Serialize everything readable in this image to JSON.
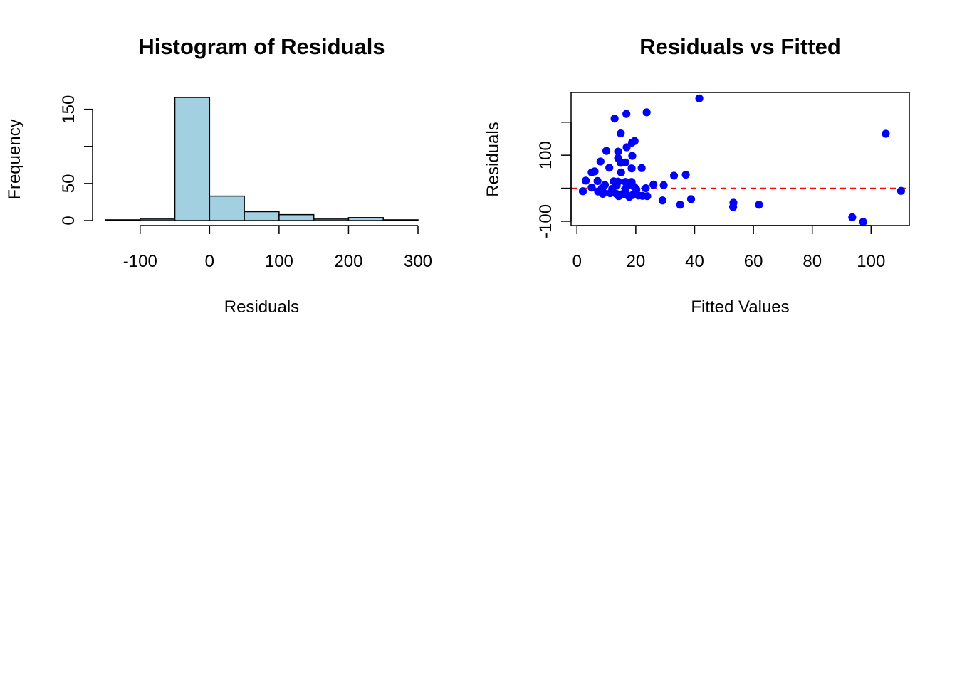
{
  "chart_data": [
    {
      "type": "bar",
      "title": "Histogram of Residuals",
      "xlabel": "Residuals",
      "ylabel": "Frequency",
      "bins": [
        {
          "from": -150,
          "to": -100,
          "count": 1
        },
        {
          "from": -100,
          "to": -50,
          "count": 2
        },
        {
          "from": -50,
          "to": 0,
          "count": 166
        },
        {
          "from": 0,
          "to": 50,
          "count": 33
        },
        {
          "from": 50,
          "to": 100,
          "count": 12
        },
        {
          "from": 100,
          "to": 150,
          "count": 8
        },
        {
          "from": 150,
          "to": 200,
          "count": 2
        },
        {
          "from": 200,
          "to": 250,
          "count": 4
        },
        {
          "from": 250,
          "to": 300,
          "count": 1
        }
      ],
      "xticks": [
        -100,
        0,
        100,
        200,
        300
      ],
      "xtick_labels": [
        "-100",
        "0",
        "100",
        "200",
        "300"
      ],
      "yticks": [
        0,
        50,
        100,
        150
      ],
      "ytick_labels": [
        "0",
        "50",
        "",
        "150"
      ],
      "xlim": [
        -150,
        300
      ],
      "ylim": [
        0,
        166
      ],
      "fill_color": "#a2d0e1",
      "grid": false
    },
    {
      "type": "scatter",
      "title": "Residuals vs Fitted",
      "xlabel": "Fitted Values",
      "ylabel": "Residuals",
      "xlim": [
        -2,
        113
      ],
      "ylim": [
        -113,
        290
      ],
      "xticks": [
        0,
        20,
        40,
        60,
        80,
        100
      ],
      "xtick_labels": [
        "0",
        "20",
        "40",
        "60",
        "80",
        "100"
      ],
      "yticks": [
        -100,
        0,
        100,
        200
      ],
      "ytick_labels": [
        "-100",
        "",
        "100",
        ""
      ],
      "reference_line": {
        "y": 0,
        "color": "#ff0000",
        "style": "dashed"
      },
      "point_color": "#0000ff",
      "points": [
        [
          41.6,
          272
        ],
        [
          23.7,
          230
        ],
        [
          16.8,
          225
        ],
        [
          12.8,
          211
        ],
        [
          105,
          165
        ],
        [
          14.9,
          166
        ],
        [
          19.6,
          143
        ],
        [
          18.7,
          138
        ],
        [
          16.9,
          124
        ],
        [
          10,
          113
        ],
        [
          14,
          111
        ],
        [
          18.8,
          98
        ],
        [
          14,
          91
        ],
        [
          8,
          81
        ],
        [
          16.5,
          78
        ],
        [
          14.9,
          77
        ],
        [
          11,
          62
        ],
        [
          22,
          61
        ],
        [
          18.6,
          60
        ],
        [
          15,
          48
        ],
        [
          6,
          51
        ],
        [
          5,
          48
        ],
        [
          33,
          38
        ],
        [
          37,
          41
        ],
        [
          3,
          23
        ],
        [
          7,
          22
        ],
        [
          12.5,
          21
        ],
        [
          14,
          20
        ],
        [
          16.5,
          19
        ],
        [
          18.6,
          19
        ],
        [
          26,
          11
        ],
        [
          29.5,
          9
        ],
        [
          9.5,
          10
        ],
        [
          13.5,
          8
        ],
        [
          17,
          6
        ],
        [
          19.5,
          4
        ],
        [
          5,
          2
        ],
        [
          23.4,
          0
        ],
        [
          8.5,
          0
        ],
        [
          12,
          -2
        ],
        [
          16.5,
          -3
        ],
        [
          20.2,
          -4
        ],
        [
          2,
          -9
        ],
        [
          7.2,
          -10
        ],
        [
          9,
          -13
        ],
        [
          11.3,
          -15
        ],
        [
          13.4,
          -17
        ],
        [
          15.3,
          -18
        ],
        [
          16.8,
          -20
        ],
        [
          18.8,
          -21
        ],
        [
          20.9,
          -22
        ],
        [
          22.3,
          -23
        ],
        [
          23.9,
          -24
        ],
        [
          8.8,
          -17
        ],
        [
          14.2,
          -24
        ],
        [
          17.8,
          -26
        ],
        [
          110.2,
          -8
        ],
        [
          29.1,
          -37
        ],
        [
          38.8,
          -33
        ],
        [
          35.1,
          -50
        ],
        [
          53.2,
          -44
        ],
        [
          53.1,
          -57
        ],
        [
          61.9,
          -50
        ],
        [
          93.6,
          -88
        ],
        [
          97.3,
          -102
        ]
      ]
    }
  ]
}
